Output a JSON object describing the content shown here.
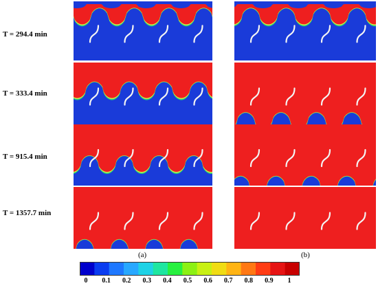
{
  "rows": [
    {
      "label": "T = 294.4 min",
      "a_level": 0.05,
      "b_level": 0.05
    },
    {
      "label": "T = 333.4 min",
      "a_level": 0.3,
      "b_level": 0.92
    },
    {
      "label": "T = 915.4 min",
      "a_level": 0.55,
      "b_level": 0.97
    },
    {
      "label": "T = 1357.7 min",
      "a_level": 0.97,
      "b_level": 1.0
    }
  ],
  "columns": {
    "a": "(a)",
    "b": "(b)"
  },
  "colorbar": {
    "ticks": [
      "0",
      "0.1",
      "0.2",
      "0.3",
      "0.4",
      "0.5",
      "0.6",
      "0.7",
      "0.8",
      "0.9",
      "1"
    ],
    "colors": [
      "#0000cc",
      "#0a3cf0",
      "#1e78ff",
      "#28a8ff",
      "#1ed2e6",
      "#1ee6a0",
      "#28f040",
      "#8cf014",
      "#c8f014",
      "#f0dc14",
      "#ffb414",
      "#ff7814",
      "#ff3c14",
      "#e61414",
      "#c80000"
    ]
  },
  "fluid_colors": {
    "red": "#ee1f1f",
    "blue": "#1a3bd9",
    "green": "#22e26a",
    "yellow": "#e8e84a"
  }
}
